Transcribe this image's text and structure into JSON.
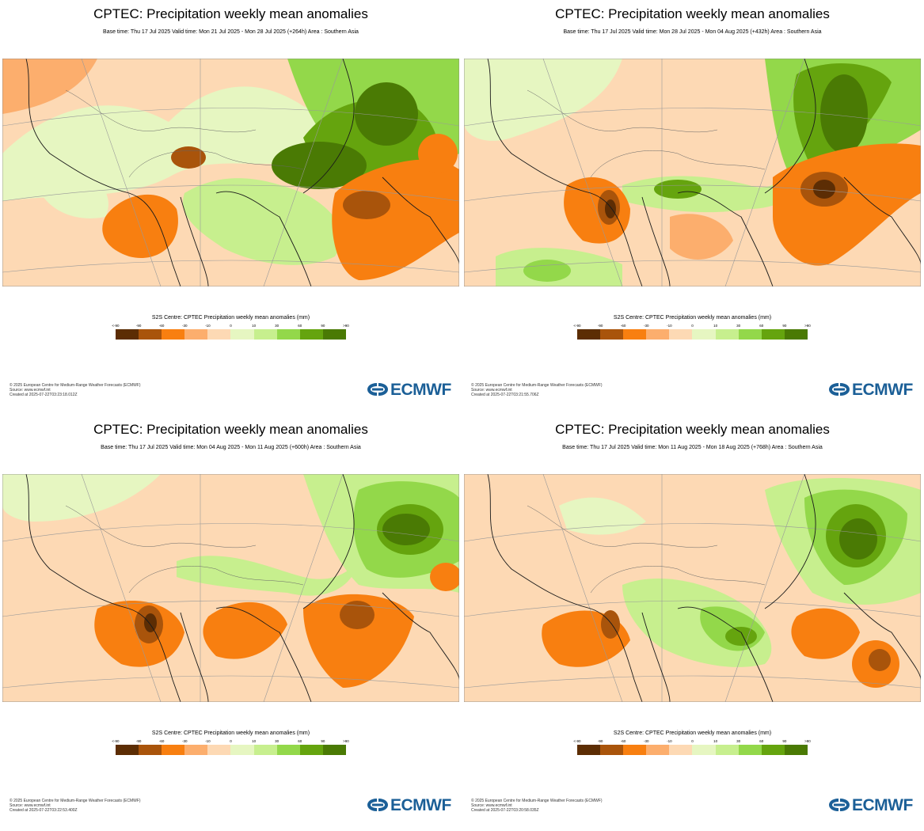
{
  "panels": [
    {
      "title": "CPTEC: Precipitation weekly mean anomalies",
      "subtitle": "Base time: Thu 17 Jul 2025 Valid time: Mon 21 Jul 2025 - Mon 28 Jul 2025 (+264h) Area : Southern Asia",
      "colorbar_title": "S2S Centre: CPTEC Precipitation weekly mean anomalies (mm)",
      "credit_lines": [
        "© 2025 European Centre for Medium-Range Weather Forecasts (ECMWF)",
        "Source: www.ecmwf.int",
        "Created at 2025-07-22T03:23:18.012Z"
      ],
      "logo_text": "ECMWF"
    },
    {
      "title": "CPTEC: Precipitation weekly mean anomalies",
      "subtitle": "Base time: Thu 17 Jul 2025 Valid time: Mon 28 Jul 2025 - Mon 04 Aug 2025 (+432h) Area : Southern Asia",
      "colorbar_title": "S2S Centre: CPTEC Precipitation weekly mean anomalies (mm)",
      "credit_lines": [
        "© 2025 European Centre for Medium-Range Weather Forecasts (ECMWF)",
        "Source: www.ecmwf.int",
        "Created at 2025-07-22T03:21:55.706Z"
      ],
      "logo_text": "ECMWF"
    },
    {
      "title": "CPTEC: Precipitation weekly mean anomalies",
      "subtitle": "Base time: Thu 17 Jul 2025 Valid time: Mon 04 Aug 2025 - Mon 11 Aug 2025 (+600h) Area : Southern Asia",
      "colorbar_title": "S2S Centre: CPTEC Precipitation weekly mean anomalies (mm)",
      "credit_lines": [
        "© 2025 European Centre for Medium-Range Weather Forecasts (ECMWF)",
        "Source: www.ecmwf.int",
        "Created at 2025-07-22T03:22:53.400Z"
      ],
      "logo_text": "ECMWF"
    },
    {
      "title": "CPTEC: Precipitation weekly mean anomalies",
      "subtitle": "Base time: Thu 17 Jul 2025 Valid time: Mon 11 Aug 2025 - Mon 18 Aug 2025 (+768h) Area : Southern Asia",
      "colorbar_title": "S2S Centre: CPTEC Precipitation weekly mean anomalies (mm)",
      "credit_lines": [
        "© 2025 European Centre for Medium-Range Weather Forecasts (ECMWF)",
        "Source: www.ecmwf.int",
        "Created at 2025-07-22T03:20:58.035Z"
      ],
      "logo_text": "ECMWF"
    }
  ],
  "legend": {
    "ticks": [
      "<-90",
      "-90",
      "-60",
      "-30",
      "-10",
      "0",
      "10",
      "30",
      "60",
      "90",
      ">90"
    ],
    "colors": [
      "#5c2d04",
      "#a9540b",
      "#f87f10",
      "#fcae6d",
      "#fdd9b4",
      "#e6f6c1",
      "#c7ef8e",
      "#93d84a",
      "#65a40e",
      "#4a7a04"
    ]
  },
  "map_colors": {
    "neutral_dry": "#fdd9b4",
    "neutral_wet": "#e6f6c1",
    "coast": "#1a1a1a",
    "border": "#666666",
    "graticule": "#999999"
  }
}
